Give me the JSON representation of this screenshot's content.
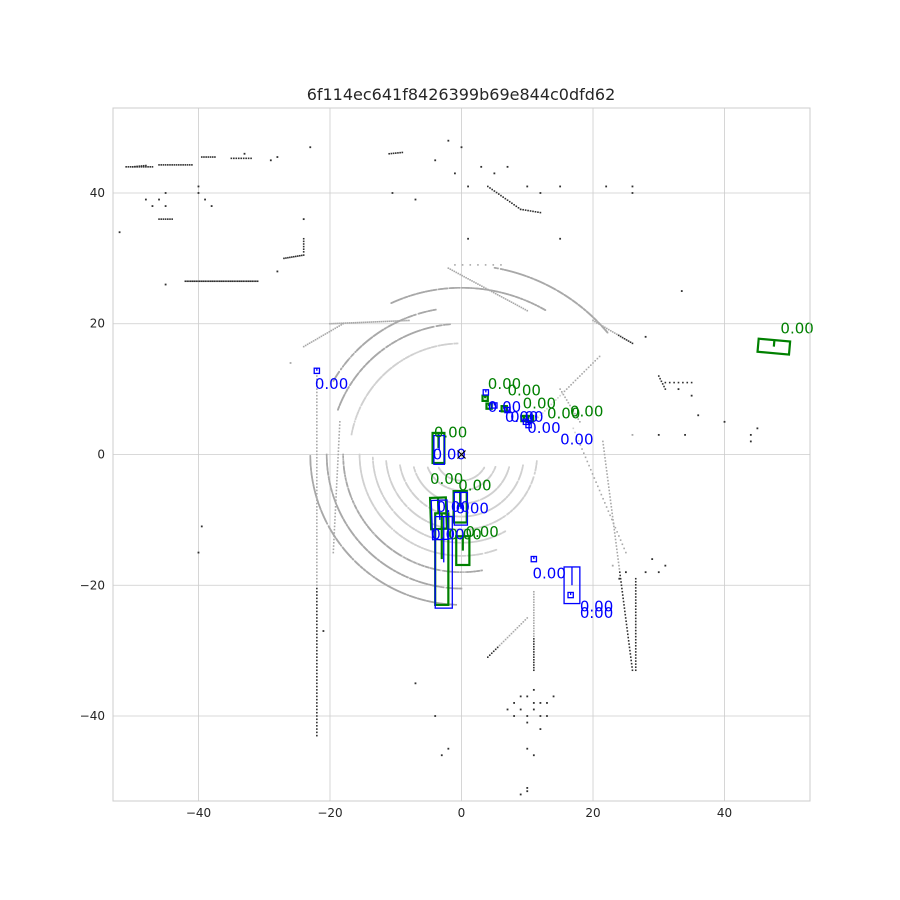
{
  "chart_data": {
    "type": "scatter",
    "title": "6f114ec641f8426399b69e844c0dfd62",
    "xlabel": "",
    "ylabel": "",
    "xlim": [
      -53,
      53
    ],
    "ylim": [
      -53,
      53
    ],
    "grid": true,
    "xticks": [
      -40,
      -20,
      0,
      20,
      40
    ],
    "yticks": [
      -40,
      -20,
      0,
      20,
      40
    ],
    "ego_marker": {
      "x": 0,
      "y": 0,
      "symbol": "x"
    },
    "colors": {
      "ground_truth": "#008000",
      "prediction": "#0000ff",
      "grid": "#cccccc",
      "axes_edge": "#cccccc",
      "points_near": "#d0d0d0",
      "points_far": "#303030"
    },
    "point_arcs": [
      {
        "r": 5.5,
        "from": 200,
        "to": 340
      },
      {
        "r": 7.5,
        "from": 195,
        "to": 345
      },
      {
        "r": 9.5,
        "from": 190,
        "to": 350
      },
      {
        "r": 11.5,
        "from": 185,
        "to": 355
      },
      {
        "r": 13.5,
        "from": 182,
        "to": 300
      },
      {
        "r": 15.5,
        "from": 180,
        "to": 290
      },
      {
        "r": 18,
        "from": 180,
        "to": 280
      },
      {
        "r": 20.5,
        "from": 180,
        "to": 270
      },
      {
        "r": 23,
        "from": 180,
        "to": 268
      },
      {
        "r": 4,
        "from": 210,
        "to": 330
      },
      {
        "r": 17,
        "from": 92,
        "to": 170
      },
      {
        "r": 20,
        "from": 95,
        "to": 160
      },
      {
        "r": 22.5,
        "from": 100,
        "to": 150
      },
      {
        "r": 25.5,
        "from": 60,
        "to": 115
      },
      {
        "r": 29,
        "from": 40,
        "to": 80
      }
    ],
    "point_segments": [
      {
        "x1": -22,
        "y1": 12,
        "x2": -22,
        "y2": -43,
        "n": 110
      },
      {
        "x1": -18.5,
        "y1": 5,
        "x2": -19.5,
        "y2": -15,
        "n": 40
      },
      {
        "x1": 21.5,
        "y1": 2,
        "x2": 26,
        "y2": -33,
        "n": 70
      },
      {
        "x1": 17,
        "y1": 4,
        "x2": 25,
        "y2": -15,
        "n": 30
      },
      {
        "x1": 26.5,
        "y1": -19,
        "x2": 26.5,
        "y2": -33,
        "n": 30
      },
      {
        "x1": -42,
        "y1": 26.5,
        "x2": -31,
        "y2": 26.5,
        "n": 40
      },
      {
        "x1": -51,
        "y1": 44,
        "x2": -47,
        "y2": 44,
        "n": 12
      },
      {
        "x1": -46,
        "y1": 44.3,
        "x2": -41,
        "y2": 44.3,
        "n": 15
      },
      {
        "x1": -27,
        "y1": 30,
        "x2": -24,
        "y2": 30.5,
        "n": 10
      },
      {
        "x1": -24,
        "y1": 31,
        "x2": -24,
        "y2": 33,
        "n": 5
      },
      {
        "x1": 4,
        "y1": 41,
        "x2": 9,
        "y2": 37.5,
        "n": 15
      },
      {
        "x1": 9,
        "y1": 37.5,
        "x2": 12,
        "y2": 37,
        "n": 8
      },
      {
        "x1": -11,
        "y1": 46,
        "x2": -9,
        "y2": 46.2,
        "n": 6
      },
      {
        "x1": -24,
        "y1": 16.5,
        "x2": -18,
        "y2": 20,
        "n": 20
      },
      {
        "x1": -20,
        "y1": 20,
        "x2": -8,
        "y2": 20.5,
        "n": 40
      },
      {
        "x1": -2,
        "y1": 28.5,
        "x2": 10,
        "y2": 22,
        "n": 40
      },
      {
        "x1": 20,
        "y1": 20.5,
        "x2": 26,
        "y2": 17,
        "n": 20
      },
      {
        "x1": 4,
        "y1": -31,
        "x2": 10,
        "y2": -25,
        "n": 20
      },
      {
        "x1": 11,
        "y1": -21,
        "x2": 11,
        "y2": -33,
        "n": 30
      },
      {
        "x1": -1,
        "y1": 29,
        "x2": 6,
        "y2": 29,
        "n": 6
      },
      {
        "x1": -46,
        "y1": 36,
        "x2": -44,
        "y2": 36,
        "n": 6
      },
      {
        "x1": -50,
        "y1": 44,
        "x2": -48,
        "y2": 44.2,
        "n": 6
      },
      {
        "x1": -39.5,
        "y1": 45.5,
        "x2": -37.5,
        "y2": 45.5,
        "n": 6
      },
      {
        "x1": -35,
        "y1": 45.3,
        "x2": -32,
        "y2": 45.3,
        "n": 8
      },
      {
        "x1": 11,
        "y1": 5,
        "x2": 21,
        "y2": 15,
        "n": 30
      },
      {
        "x1": 15,
        "y1": 10,
        "x2": 18,
        "y2": 5,
        "n": 12
      },
      {
        "x1": 30,
        "y1": 12,
        "x2": 31,
        "y2": 10,
        "n": 5
      },
      {
        "x1": 31,
        "y1": 11,
        "x2": 35,
        "y2": 11,
        "n": 6
      }
    ],
    "point_scatter": [
      [
        -52,
        34
      ],
      [
        -48,
        39
      ],
      [
        -47,
        38
      ],
      [
        -46,
        39
      ],
      [
        -45,
        38
      ],
      [
        -45,
        40
      ],
      [
        -40,
        40
      ],
      [
        -39,
        39
      ],
      [
        -38,
        38
      ],
      [
        -40,
        41
      ],
      [
        -33,
        46
      ],
      [
        -29,
        45
      ],
      [
        -28,
        45.5
      ],
      [
        -23,
        47
      ],
      [
        -24,
        36
      ],
      [
        -28,
        28
      ],
      [
        -45,
        26
      ],
      [
        -26,
        14
      ],
      [
        -22,
        11
      ],
      [
        -10.5,
        40
      ],
      [
        -7,
        39
      ],
      [
        -4,
        45
      ],
      [
        -2,
        48
      ],
      [
        0,
        47
      ],
      [
        1,
        41
      ],
      [
        -1,
        43
      ],
      [
        1,
        33
      ],
      [
        3,
        44
      ],
      [
        5,
        43
      ],
      [
        7,
        44
      ],
      [
        10,
        41
      ],
      [
        12,
        40
      ],
      [
        15,
        41
      ],
      [
        22,
        41
      ],
      [
        26,
        41
      ],
      [
        26,
        40
      ],
      [
        15,
        33
      ],
      [
        28,
        18
      ],
      [
        33,
        10
      ],
      [
        33.5,
        25
      ],
      [
        35,
        9
      ],
      [
        36,
        6
      ],
      [
        40,
        5
      ],
      [
        44,
        2
      ],
      [
        45,
        4
      ],
      [
        44,
        3
      ],
      [
        26,
        3
      ],
      [
        30,
        3
      ],
      [
        34,
        3
      ],
      [
        -7,
        -35
      ],
      [
        -4,
        -40
      ],
      [
        -3,
        -46
      ],
      [
        -2,
        -45
      ],
      [
        10,
        -45
      ],
      [
        11,
        -46
      ],
      [
        10,
        -51
      ],
      [
        9,
        -52
      ],
      [
        10,
        -51.5
      ],
      [
        12,
        -42
      ],
      [
        13,
        -38
      ],
      [
        8,
        -38
      ],
      [
        9,
        -37
      ],
      [
        10,
        -37
      ],
      [
        11,
        -39
      ],
      [
        12,
        -40
      ],
      [
        10,
        -40
      ],
      [
        9,
        -39
      ],
      [
        11,
        -38
      ],
      [
        13,
        -40
      ],
      [
        8,
        -40
      ],
      [
        10,
        -41
      ],
      [
        12,
        -38
      ],
      [
        11,
        -36
      ],
      [
        14,
        -37
      ],
      [
        7,
        -39
      ],
      [
        23,
        -17
      ],
      [
        24,
        -19
      ],
      [
        25,
        -18
      ],
      [
        28,
        -18
      ],
      [
        30,
        -18
      ],
      [
        29,
        -16
      ],
      [
        31,
        -17
      ],
      [
        -21,
        -27
      ],
      [
        -39.5,
        -11
      ],
      [
        -40,
        -15
      ]
    ],
    "ground_truth": [
      {
        "cx": 47.5,
        "cy": 16.5,
        "w": 4.8,
        "h": 2.0,
        "angle": -5,
        "score": "0.00",
        "label_x": 48.5,
        "label_y": 18.5
      },
      {
        "cx": -3.5,
        "cy": 1.0,
        "w": 1.8,
        "h": 4.6,
        "angle": 0,
        "score": "0.00",
        "label_x": -4.2,
        "label_y": 2.6
      },
      {
        "cx": -3.5,
        "cy": -9.0,
        "w": 2.4,
        "h": 4.8,
        "angle": 2,
        "score": "0.00",
        "label_x": -4.8,
        "label_y": -4.5
      },
      {
        "cx": -0.2,
        "cy": -8.0,
        "w": 2.0,
        "h": 4.8,
        "angle": 0,
        "score": "0.00",
        "label_x": -0.5,
        "label_y": -5.5
      },
      {
        "cx": -3.0,
        "cy": -16.0,
        "w": 2.0,
        "h": 14.0,
        "angle": 0,
        "score": "0.00",
        "label_x": -2.0,
        "label_y": -13.0
      },
      {
        "cx": 0.2,
        "cy": -14.7,
        "w": 2.0,
        "h": 4.4,
        "angle": 0,
        "score": "0.00",
        "label_x": 0.6,
        "label_y": -12.6
      },
      {
        "cx": 3.6,
        "cy": 8.6,
        "w": 0.8,
        "h": 0.8,
        "angle": 0,
        "score": "0.00",
        "label_x": 4.0,
        "label_y": 10.0
      },
      {
        "cx": 4.2,
        "cy": 7.4,
        "w": 0.8,
        "h": 0.8,
        "angle": 0,
        "score": "0.00",
        "label_x": 7.0,
        "label_y": 9.0
      },
      {
        "cx": 6.5,
        "cy": 7.0,
        "w": 0.8,
        "h": 0.8,
        "angle": 0,
        "score": "0.00",
        "label_x": 9.3,
        "label_y": 7.0
      },
      {
        "cx": 9.5,
        "cy": 5.5,
        "w": 0.8,
        "h": 0.8,
        "angle": 0,
        "score": "0.00",
        "label_x": 13.0,
        "label_y": 5.5
      },
      {
        "cx": 10.5,
        "cy": 5.5,
        "w": 0.8,
        "h": 0.8,
        "angle": 0,
        "score": "0.00",
        "label_x": 16.5,
        "label_y": 5.8
      }
    ],
    "predictions": [
      {
        "cx": -22.0,
        "cy": 12.8,
        "w": 0.8,
        "h": 0.8,
        "angle": 0,
        "score": "0.00",
        "label_x": -22.3,
        "label_y": 10.0
      },
      {
        "cx": -3.4,
        "cy": 0.7,
        "w": 1.6,
        "h": 4.4,
        "angle": 0,
        "score": "0.00",
        "label_x": -4.4,
        "label_y": -0.8
      },
      {
        "cx": -3.3,
        "cy": -10.0,
        "w": 2.4,
        "h": 6.0,
        "angle": 2,
        "score": "0.00",
        "label_x": -3.8,
        "label_y": -8.8
      },
      {
        "cx": -0.1,
        "cy": -8.3,
        "w": 2.0,
        "h": 5.0,
        "angle": 0,
        "score": "0.00",
        "label_x": -0.9,
        "label_y": -9.0
      },
      {
        "cx": -2.7,
        "cy": -16.5,
        "w": 2.6,
        "h": 14.0,
        "angle": 0,
        "score": "0.00",
        "label_x": -4.6,
        "label_y": -13.0
      },
      {
        "cx": 11.0,
        "cy": -16.0,
        "w": 0.8,
        "h": 0.8,
        "angle": 0,
        "score": "0.00",
        "label_x": 10.8,
        "label_y": -19.0
      },
      {
        "cx": 16.8,
        "cy": -20.0,
        "w": 2.4,
        "h": 5.6,
        "angle": 0,
        "score": "0.00",
        "label_x": 18.0,
        "label_y": -24.0
      },
      {
        "cx": 3.7,
        "cy": 9.5,
        "w": 0.8,
        "h": 0.8,
        "angle": 0,
        "score": "0.00",
        "label_x": 4.0,
        "label_y": 6.5
      },
      {
        "cx": 5.0,
        "cy": 7.5,
        "w": 0.8,
        "h": 0.8,
        "angle": 0,
        "score": "0.00",
        "label_x": 6.6,
        "label_y": 5.0
      },
      {
        "cx": 7.0,
        "cy": 6.8,
        "w": 0.8,
        "h": 0.8,
        "angle": 0,
        "score": "0.00",
        "label_x": 7.4,
        "label_y": 5.0
      },
      {
        "cx": 9.8,
        "cy": 5.0,
        "w": 0.8,
        "h": 0.8,
        "angle": 0,
        "score": "0.00",
        "label_x": 10.0,
        "label_y": 3.3
      },
      {
        "cx": 10.2,
        "cy": 4.5,
        "w": 0.8,
        "h": 0.8,
        "angle": 0,
        "score": "0.00",
        "label_x": 15.0,
        "label_y": 1.5
      },
      {
        "cx": 16.6,
        "cy": -21.5,
        "w": 0.8,
        "h": 0.8,
        "angle": 0,
        "score": "0.00",
        "label_x": 18.0,
        "label_y": -25.0
      }
    ]
  }
}
